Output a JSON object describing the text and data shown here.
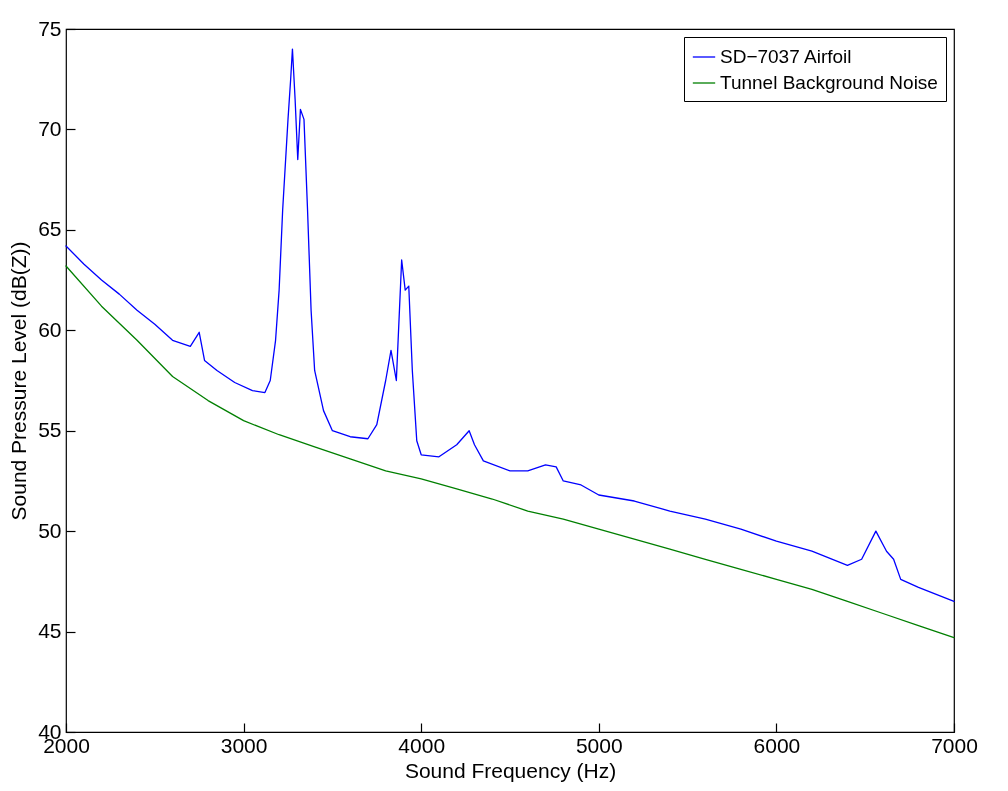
{
  "chart_data": {
    "type": "line",
    "xlabel": "Sound Frequency (Hz)",
    "ylabel": "Sound Pressure Level (dB(Z))",
    "xlim": [
      2000,
      7000
    ],
    "xticks": [
      2000,
      3000,
      4000,
      5000,
      6000,
      7000
    ],
    "ylim": [
      40,
      75
    ],
    "yticks": [
      40,
      45,
      50,
      55,
      60,
      65,
      70,
      75
    ],
    "grid": false,
    "legend": "top right",
    "marker": "none",
    "line_style": "solid",
    "series": [
      {
        "name": "SD−7037 Airfoil",
        "color": "#0000ff",
        "x": [
          2000,
          2100,
          2200,
          2300,
          2400,
          2500,
          2600,
          2700,
          2750,
          2780,
          2850,
          2950,
          3050,
          3120,
          3150,
          3180,
          3200,
          3220,
          3250,
          3265,
          3275,
          3290,
          3305,
          3320,
          3340,
          3360,
          3380,
          3400,
          3450,
          3500,
          3600,
          3700,
          3750,
          3800,
          3830,
          3860,
          3890,
          3910,
          3930,
          3950,
          3975,
          4000,
          4100,
          4200,
          4270,
          4300,
          4350,
          4500,
          4600,
          4700,
          4760,
          4800,
          4900,
          5000,
          5200,
          5400,
          5600,
          5800,
          6000,
          6200,
          6400,
          6480,
          6560,
          6620,
          6660,
          6700,
          6800,
          7000
        ],
        "values": [
          64.2,
          63.3,
          62.5,
          61.8,
          61.0,
          60.3,
          59.5,
          59.2,
          59.9,
          58.5,
          58.0,
          57.4,
          57.0,
          56.9,
          57.5,
          59.5,
          62,
          66,
          70.5,
          72.5,
          74.0,
          71.5,
          68.5,
          71.0,
          70.5,
          66,
          61,
          58,
          56,
          55,
          54.7,
          54.6,
          55.3,
          57.5,
          59.0,
          57.5,
          63.5,
          62.0,
          62.2,
          58,
          54.5,
          53.8,
          53.7,
          54.3,
          55.0,
          54.3,
          53.5,
          53.0,
          53.0,
          53.3,
          53.2,
          52.5,
          52.3,
          51.8,
          51.5,
          51.0,
          50.6,
          50.1,
          49.5,
          49.0,
          48.3,
          48.6,
          50.0,
          49.0,
          48.6,
          47.6,
          47.2,
          46.5
        ]
      },
      {
        "name": "Tunnel Background Noise",
        "color": "#007f00",
        "x": [
          2000,
          2200,
          2400,
          2600,
          2800,
          3000,
          3200,
          3400,
          3600,
          3800,
          4000,
          4200,
          4400,
          4600,
          4800,
          5000,
          5200,
          5400,
          5600,
          5800,
          6000,
          6200,
          6400,
          6600,
          6800,
          7000
        ],
        "values": [
          63.2,
          61.2,
          59.5,
          57.7,
          56.5,
          55.5,
          54.8,
          54.2,
          53.6,
          53.0,
          52.6,
          52.1,
          51.6,
          51.0,
          50.6,
          50.1,
          49.6,
          49.1,
          48.6,
          48.1,
          47.6,
          47.1,
          46.5,
          45.9,
          45.3,
          44.7
        ]
      }
    ]
  }
}
